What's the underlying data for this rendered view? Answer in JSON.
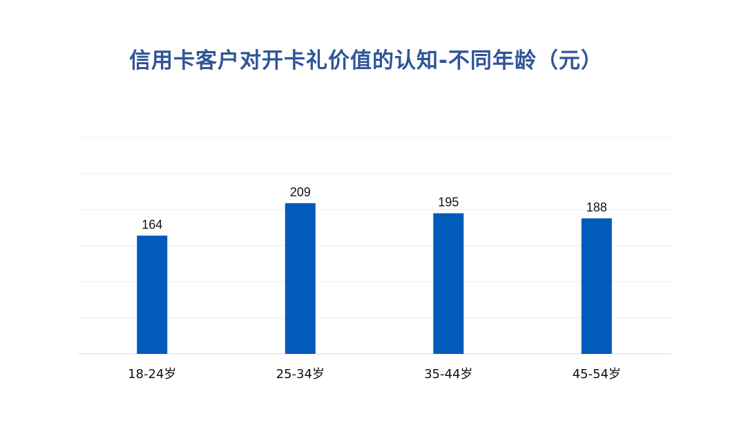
{
  "chart_data": {
    "type": "bar",
    "title": "信用卡客户对开卡礼价值的认知-不同年龄（元）",
    "categories": [
      "18-24岁",
      "25-34岁",
      "35-44岁",
      "45-54岁"
    ],
    "values": [
      164,
      209,
      195,
      188
    ],
    "xlabel": "",
    "ylabel": "",
    "ylim": [
      0,
      300
    ],
    "grid": true,
    "bar_color": "#005BBB",
    "title_color": "#2F5597"
  }
}
